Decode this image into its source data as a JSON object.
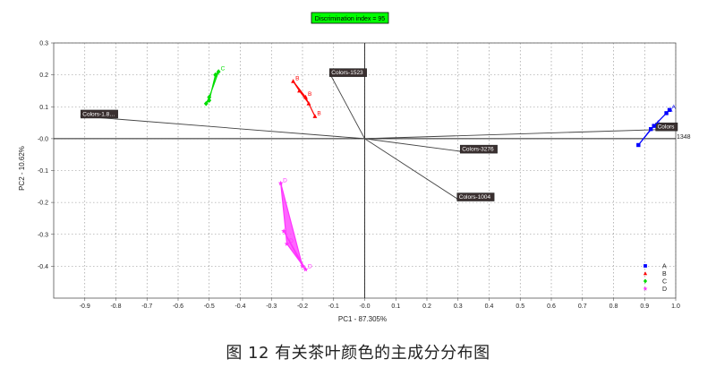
{
  "caption": "图 12 有关茶叶颜色的主成分分布图",
  "chart_data": {
    "type": "scatter",
    "badge": "Discrimination index = 95",
    "xlabel": "PC1 - 87.305%",
    "ylabel": "PC2 - 10.62%",
    "xlim": [
      -1.0,
      1.0
    ],
    "ylim": [
      -0.5,
      0.3
    ],
    "x_ticks": [
      -0.9,
      -0.8,
      -0.7,
      -0.6,
      -0.5,
      -0.4,
      -0.3,
      -0.2,
      -0.1,
      0.0,
      0.1,
      0.2,
      0.3,
      0.4,
      0.5,
      0.6,
      0.7,
      0.8,
      0.9,
      1.0
    ],
    "x_tick_labels": [
      "-0.9",
      "-0.8",
      "-0.7",
      "-0.6",
      "-0.5",
      "-0.4",
      "-0.3",
      "-0.2",
      "-0.1",
      "-0.0",
      "0.1",
      "0.2",
      "0.3",
      "0.4",
      "0.5",
      "0.6",
      "0.7",
      "0.8",
      "0.9",
      "1.0"
    ],
    "y_ticks": [
      0.3,
      0.2,
      0.1,
      0.0,
      -0.1,
      -0.2,
      -0.3,
      -0.4
    ],
    "y_tick_labels": [
      "0.3",
      "0.2",
      "0.1",
      "-0.0",
      "-0.1",
      "-0.2",
      "-0.3",
      "-0.4"
    ],
    "grid": true,
    "legend_position": "bottom-right",
    "series": [
      {
        "name": "A",
        "marker": "square",
        "color": "#0000ff",
        "points": [
          [
            0.88,
            -0.02
          ],
          [
            0.92,
            0.03
          ],
          [
            0.97,
            0.08
          ],
          [
            0.98,
            0.09
          ],
          [
            0.93,
            0.04
          ]
        ],
        "point_labels": [
          "",
          "",
          "A",
          "A",
          "A"
        ]
      },
      {
        "name": "B",
        "marker": "triangle",
        "color": "#ff0000",
        "points": [
          [
            -0.23,
            0.18
          ],
          [
            -0.19,
            0.13
          ],
          [
            -0.16,
            0.07
          ],
          [
            -0.18,
            0.11
          ],
          [
            -0.21,
            0.15
          ]
        ],
        "point_labels": [
          "B",
          "B",
          "B",
          "",
          ""
        ]
      },
      {
        "name": "C",
        "marker": "diamond",
        "color": "#00dd00",
        "points": [
          [
            -0.51,
            0.11
          ],
          [
            -0.5,
            0.12
          ],
          [
            -0.48,
            0.2
          ],
          [
            -0.47,
            0.21
          ],
          [
            -0.5,
            0.13
          ]
        ],
        "point_labels": [
          "",
          "",
          "",
          "C",
          ""
        ]
      },
      {
        "name": "D",
        "marker": "star",
        "color": "#ff33ff",
        "points": [
          [
            -0.27,
            -0.14
          ],
          [
            -0.25,
            -0.33
          ],
          [
            -0.19,
            -0.41
          ],
          [
            -0.26,
            -0.29
          ],
          [
            -0.2,
            -0.4
          ]
        ],
        "point_labels": [
          "D",
          "D",
          "D",
          "",
          ""
        ]
      }
    ],
    "loadings": [
      {
        "label": "Colors-1.8…",
        "x": -0.91,
        "y": 0.07,
        "label_side": "right"
      },
      {
        "label": "Colors-1523",
        "x": -0.11,
        "y": 0.2,
        "label_side": "right"
      },
      {
        "label": "Colors-3276",
        "x": 0.31,
        "y": -0.04,
        "label_side": "right"
      },
      {
        "label": "Colors-1004",
        "x": 0.3,
        "y": -0.19,
        "label_side": "right"
      },
      {
        "label": "Colors",
        "x": 1.0,
        "y": 0.03,
        "label_side": "left",
        "outside_label": "1348"
      }
    ]
  }
}
